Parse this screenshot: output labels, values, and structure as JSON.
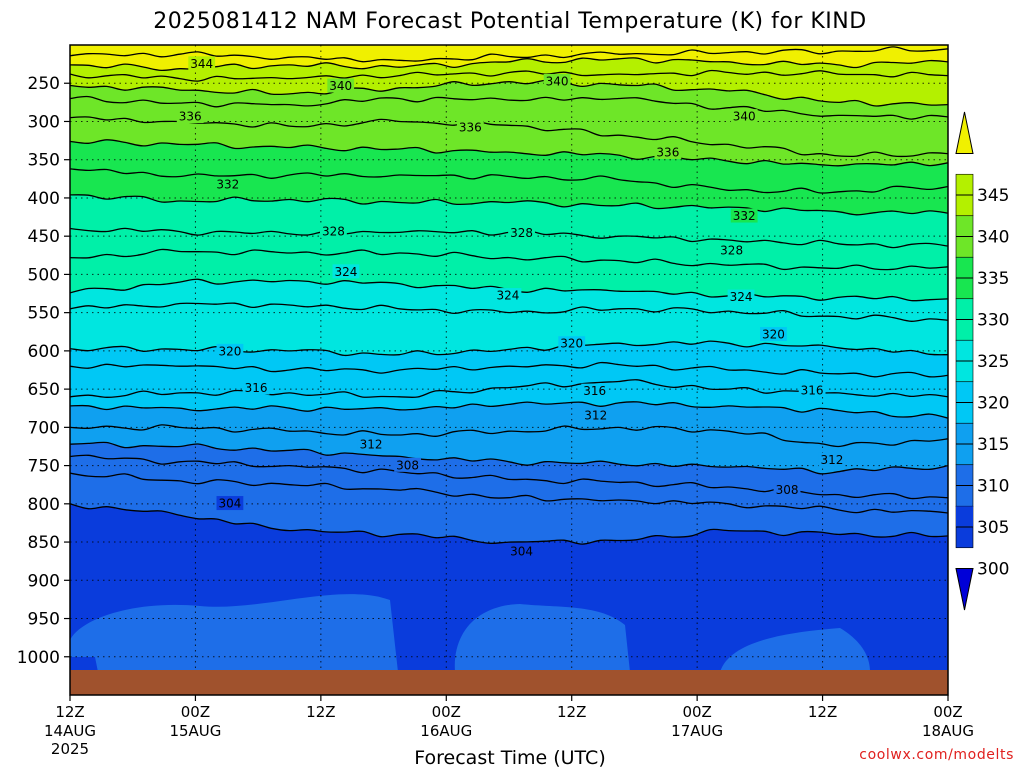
{
  "chart_data": {
    "type": "heatmap",
    "title": "2025081412 NAM Forecast Potential Temperature (K) for KIND",
    "xlabel": "Forecast Time (UTC)",
    "ylabel": "",
    "credit": "coolwx.com/modelts",
    "y_axis": {
      "reversed": true,
      "ticks": [
        {
          "value": 250,
          "label": "250"
        },
        {
          "value": 300,
          "label": "300"
        },
        {
          "value": 350,
          "label": "350"
        },
        {
          "value": 400,
          "label": "400"
        },
        {
          "value": 450,
          "label": "450"
        },
        {
          "value": 500,
          "label": "500"
        },
        {
          "value": 550,
          "label": "550"
        },
        {
          "value": 600,
          "label": "600"
        },
        {
          "value": 650,
          "label": "650"
        },
        {
          "value": 700,
          "label": "700"
        },
        {
          "value": 750,
          "label": "750"
        },
        {
          "value": 800,
          "label": "800"
        },
        {
          "value": 850,
          "label": "850"
        },
        {
          "value": 900,
          "label": "900"
        },
        {
          "value": 950,
          "label": "950"
        },
        {
          "value": 1000,
          "label": "1000"
        }
      ]
    },
    "x_axis": {
      "range_hours": [
        0,
        84
      ],
      "ticks": [
        {
          "hour": 0,
          "line1": "12Z",
          "line2": "14AUG",
          "line3": "2025"
        },
        {
          "hour": 12,
          "line1": "00Z",
          "line2": "15AUG",
          "line3": ""
        },
        {
          "hour": 24,
          "line1": "12Z",
          "line2": "",
          "line3": ""
        },
        {
          "hour": 36,
          "line1": "00Z",
          "line2": "16AUG",
          "line3": ""
        },
        {
          "hour": 48,
          "line1": "12Z",
          "line2": "",
          "line3": ""
        },
        {
          "hour": 60,
          "line1": "00Z",
          "line2": "17AUG",
          "line3": ""
        },
        {
          "hour": 72,
          "line1": "12Z",
          "line2": "",
          "line3": ""
        },
        {
          "hour": 84,
          "line1": "00Z",
          "line2": "18AUG",
          "line3": ""
        }
      ]
    },
    "colorbar": {
      "levels": [
        300,
        305,
        310,
        315,
        320,
        325,
        330,
        335,
        340,
        345
      ],
      "labels": [
        "300",
        "305",
        "310",
        "315",
        "320",
        "325",
        "330",
        "335",
        "340",
        "345"
      ],
      "colors": [
        "#0000d8",
        "#0a3cdc",
        "#1e6ee8",
        "#0fa0f0",
        "#00c8f5",
        "#00e6e0",
        "#00f0a8",
        "#18e650",
        "#6ee628",
        "#b4f000",
        "#f0f000"
      ],
      "fill_underflow": "#0000d8",
      "fill_overflow": "#f0f000"
    },
    "ground_color": "#a0522d",
    "contour_interval": 2,
    "isentropes": [
      {
        "theta": 346,
        "pressure": [
          214,
          212,
          216,
          220,
          215,
          212,
          210,
          208,
          205
        ]
      },
      {
        "theta": 344,
        "pressure": [
          226,
          231,
          226,
          229,
          222,
          218,
          222,
          226,
          222
        ]
      },
      {
        "theta": 342,
        "pressure": [
          238,
          244,
          244,
          240,
          236,
          238,
          236,
          238,
          240
        ]
      },
      {
        "theta": 340,
        "pressure": [
          253,
          259,
          264,
          256,
          248,
          252,
          260,
          275,
          278
        ]
      },
      {
        "theta": 338,
        "pressure": [
          270,
          276,
          278,
          270,
          272,
          270,
          282,
          292,
          294
        ]
      },
      {
        "theta": 336,
        "pressure": [
          295,
          300,
          306,
          300,
          305,
          318,
          330,
          345,
          342
        ]
      },
      {
        "theta": 334,
        "pressure": [
          326,
          330,
          334,
          336,
          340,
          344,
          352,
          358,
          354
        ]
      },
      {
        "theta": 332,
        "pressure": [
          362,
          372,
          370,
          370,
          372,
          376,
          390,
          392,
          385
        ]
      },
      {
        "theta": 330,
        "pressure": [
          396,
          404,
          402,
          406,
          406,
          410,
          412,
          418,
          420
        ]
      },
      {
        "theta": 328,
        "pressure": [
          440,
          444,
          447,
          445,
          445,
          450,
          455,
          460,
          463
        ]
      },
      {
        "theta": 326,
        "pressure": [
          478,
          470,
          472,
          472,
          478,
          482,
          488,
          492,
          490
        ]
      },
      {
        "theta": 324,
        "pressure": [
          524,
          510,
          508,
          512,
          520,
          522,
          528,
          530,
          532
        ]
      },
      {
        "theta": 322,
        "pressure": [
          545,
          538,
          540,
          545,
          550,
          545,
          548,
          555,
          560
        ]
      },
      {
        "theta": 320,
        "pressure": [
          597,
          598,
          600,
          605,
          598,
          590,
          590,
          596,
          605
        ]
      },
      {
        "theta": 318,
        "pressure": [
          620,
          620,
          625,
          625,
          620,
          618,
          625,
          630,
          632
        ]
      },
      {
        "theta": 316,
        "pressure": [
          660,
          655,
          655,
          660,
          648,
          640,
          650,
          655,
          660
        ]
      },
      {
        "theta": 314,
        "pressure": [
          672,
          675,
          675,
          677,
          670,
          668,
          672,
          678,
          688
        ]
      },
      {
        "theta": 312,
        "pressure": [
          700,
          700,
          705,
          710,
          705,
          700,
          705,
          725,
          715
        ]
      },
      {
        "theta": 310,
        "pressure": [
          722,
          725,
          730,
          738,
          745,
          748,
          752,
          758,
          750
        ]
      },
      {
        "theta": 308,
        "pressure": [
          738,
          745,
          750,
          758,
          768,
          772,
          778,
          788,
          792
        ]
      },
      {
        "theta": 306,
        "pressure": [
          760,
          770,
          775,
          782,
          792,
          795,
          800,
          808,
          812
        ]
      },
      {
        "theta": 304,
        "pressure": [
          800,
          815,
          835,
          840,
          850,
          848,
          835,
          840,
          842
        ]
      }
    ],
    "isentrope_labels": [
      {
        "text": "344",
        "hour": 12.6,
        "pressure": 224
      },
      {
        "text": "340",
        "hour": 25.9,
        "pressure": 253
      },
      {
        "text": "340",
        "hour": 46.6,
        "pressure": 247
      },
      {
        "text": "340",
        "hour": 64.5,
        "pressure": 293
      },
      {
        "text": "336",
        "hour": 11.5,
        "pressure": 293
      },
      {
        "text": "336",
        "hour": 38.3,
        "pressure": 307
      },
      {
        "text": "336",
        "hour": 57.2,
        "pressure": 340
      },
      {
        "text": "332",
        "hour": 15.1,
        "pressure": 382
      },
      {
        "text": "332",
        "hour": 64.5,
        "pressure": 423
      },
      {
        "text": "328",
        "hour": 25.2,
        "pressure": 443
      },
      {
        "text": "328",
        "hour": 43.2,
        "pressure": 445
      },
      {
        "text": "328",
        "hour": 63.3,
        "pressure": 468
      },
      {
        "text": "324",
        "hour": 26.4,
        "pressure": 496
      },
      {
        "text": "324",
        "hour": 41.9,
        "pressure": 527
      },
      {
        "text": "324",
        "hour": 64.2,
        "pressure": 529
      },
      {
        "text": "320",
        "hour": 15.3,
        "pressure": 600
      },
      {
        "text": "320",
        "hour": 48.0,
        "pressure": 590
      },
      {
        "text": "320",
        "hour": 67.3,
        "pressure": 578
      },
      {
        "text": "316",
        "hour": 17.8,
        "pressure": 648
      },
      {
        "text": "316",
        "hour": 50.2,
        "pressure": 652
      },
      {
        "text": "316",
        "hour": 71.0,
        "pressure": 651
      },
      {
        "text": "312",
        "hour": 28.8,
        "pressure": 722
      },
      {
        "text": "312",
        "hour": 50.3,
        "pressure": 684
      },
      {
        "text": "312",
        "hour": 72.9,
        "pressure": 742
      },
      {
        "text": "308",
        "hour": 32.3,
        "pressure": 749
      },
      {
        "text": "308",
        "hour": 68.6,
        "pressure": 781
      },
      {
        "text": "304",
        "hour": 15.3,
        "pressure": 799
      },
      {
        "text": "304",
        "hour": 43.2,
        "pressure": 862
      }
    ]
  }
}
